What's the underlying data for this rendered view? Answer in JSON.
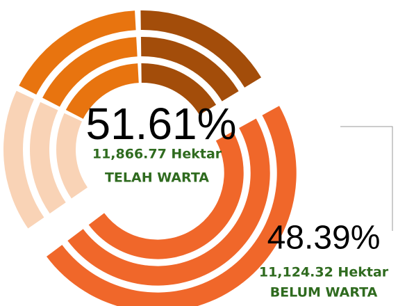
{
  "chart_data": {
    "type": "donut",
    "categories": [
      "TELAH WARTA",
      "BELUM WARTA"
    ],
    "values": [
      51.61,
      48.39
    ],
    "value_labels": [
      "51.61%",
      "48.39%"
    ],
    "area_labels": [
      "11,866.77 Hektar",
      "11,124.32 Hektar"
    ],
    "colors": [
      [
        "#f9d3b6",
        "#e8740f",
        "#a34d0a"
      ],
      [
        "#f0672a"
      ]
    ]
  }
}
